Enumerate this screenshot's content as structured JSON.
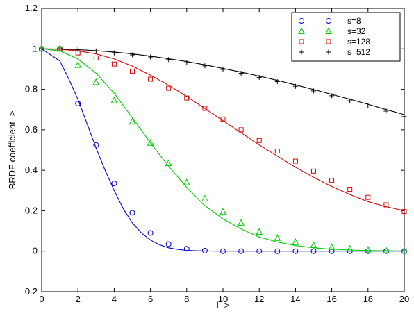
{
  "chart_data": {
    "type": "line",
    "title": "",
    "xlabel": "l ->",
    "ylabel": "BRDF coefficient ->",
    "xlim": [
      0,
      20
    ],
    "ylim": [
      -0.2,
      1.2
    ],
    "xticks": [
      "0",
      "2",
      "4",
      "6",
      "8",
      "10",
      "12",
      "14",
      "16",
      "18",
      "20"
    ],
    "yticks": [
      "-0.2",
      "0",
      "0.2",
      "0.4",
      "0.6",
      "0.8",
      "1",
      "1.2"
    ],
    "grid": false,
    "legend_position": "top-right",
    "series": [
      {
        "name": "s=8",
        "marker": "circle",
        "color": "#0000cc",
        "points_x": [
          0,
          1,
          2,
          3,
          4,
          5,
          6,
          7,
          8,
          9,
          10,
          11,
          12,
          13,
          14,
          15,
          16,
          17,
          18,
          19,
          20
        ],
        "points_y": [
          1.0,
          1.0,
          0.73,
          0.525,
          0.335,
          0.19,
          0.09,
          0.035,
          0.012,
          0.003,
          0.0,
          0.0,
          0.0,
          0.0,
          0.0,
          0.0,
          0.0,
          0.0,
          0.0,
          0.0,
          0.0
        ],
        "curve_x": [
          0,
          0.5,
          1,
          1.5,
          2,
          2.5,
          3,
          3.5,
          4,
          4.5,
          5,
          5.5,
          6,
          6.5,
          7,
          7.5,
          8,
          8.5,
          9,
          10,
          11,
          12,
          13,
          14,
          15,
          16,
          17,
          18,
          19,
          20
        ],
        "curve_y": [
          1.0,
          0.97,
          0.94,
          0.85,
          0.75,
          0.63,
          0.51,
          0.4,
          0.3,
          0.21,
          0.14,
          0.09,
          0.055,
          0.032,
          0.017,
          0.009,
          0.004,
          0.002,
          0.001,
          0.0,
          0.0,
          0.0,
          0.0,
          0.0,
          0.0,
          0.0,
          0.0,
          0.0,
          0.0,
          0.0
        ]
      },
      {
        "name": "s=32",
        "marker": "triangle",
        "color": "#00cc00",
        "points_x": [
          0,
          1,
          2,
          3,
          4,
          5,
          6,
          7,
          8,
          9,
          10,
          11,
          12,
          13,
          14,
          15,
          16,
          17,
          18,
          19,
          20
        ],
        "points_y": [
          1.0,
          1.0,
          0.92,
          0.835,
          0.745,
          0.64,
          0.535,
          0.435,
          0.34,
          0.26,
          0.195,
          0.14,
          0.095,
          0.065,
          0.045,
          0.03,
          0.02,
          0.012,
          0.007,
          0.004,
          0.002
        ],
        "curve_x": [
          0,
          1,
          2,
          3,
          4,
          5,
          6,
          7,
          8,
          9,
          10,
          11,
          12,
          13,
          14,
          15,
          16,
          17,
          18,
          19,
          20
        ],
        "curve_y": [
          1.0,
          0.99,
          0.95,
          0.88,
          0.78,
          0.66,
          0.535,
          0.42,
          0.315,
          0.225,
          0.16,
          0.11,
          0.07,
          0.045,
          0.028,
          0.017,
          0.01,
          0.006,
          0.003,
          0.002,
          0.001
        ]
      },
      {
        "name": "s=128",
        "marker": "square",
        "color": "#dd0000",
        "points_x": [
          0,
          1,
          2,
          3,
          4,
          5,
          6,
          7,
          8,
          9,
          10,
          11,
          12,
          13,
          14,
          15,
          16,
          17,
          18,
          19,
          20
        ],
        "points_y": [
          1.0,
          1.0,
          0.98,
          0.955,
          0.925,
          0.89,
          0.85,
          0.805,
          0.757,
          0.706,
          0.653,
          0.6,
          0.547,
          0.495,
          0.445,
          0.396,
          0.35,
          0.306,
          0.266,
          0.229,
          0.196
        ],
        "curve_x": [
          0,
          1,
          2,
          3,
          4,
          5,
          6,
          7,
          8,
          9,
          10,
          11,
          12,
          13,
          14,
          15,
          16,
          17,
          18,
          19,
          20
        ],
        "curve_y": [
          1.0,
          0.998,
          0.99,
          0.975,
          0.95,
          0.915,
          0.87,
          0.82,
          0.765,
          0.705,
          0.645,
          0.585,
          0.525,
          0.47,
          0.415,
          0.365,
          0.32,
          0.28,
          0.245,
          0.22,
          0.2
        ]
      },
      {
        "name": "s=512",
        "marker": "plus",
        "color": "#000000",
        "points_x": [
          0,
          1,
          2,
          3,
          4,
          5,
          6,
          7,
          8,
          9,
          10,
          11,
          12,
          13,
          14,
          15,
          16,
          17,
          18,
          19,
          20
        ],
        "points_y": [
          1.0,
          1.0,
          0.995,
          0.99,
          0.98,
          0.97,
          0.96,
          0.947,
          0.932,
          0.916,
          0.898,
          0.879,
          0.859,
          0.838,
          0.815,
          0.792,
          0.768,
          0.743,
          0.718,
          0.692,
          0.665
        ],
        "curve_x": [
          0,
          1,
          2,
          3,
          4,
          5,
          6,
          7,
          8,
          9,
          10,
          11,
          12,
          13,
          14,
          15,
          16,
          17,
          18,
          19,
          20
        ],
        "curve_y": [
          1.0,
          0.999,
          0.996,
          0.991,
          0.984,
          0.975,
          0.964,
          0.951,
          0.937,
          0.921,
          0.903,
          0.885,
          0.865,
          0.844,
          0.822,
          0.799,
          0.775,
          0.751,
          0.726,
          0.7,
          0.675
        ]
      }
    ]
  }
}
